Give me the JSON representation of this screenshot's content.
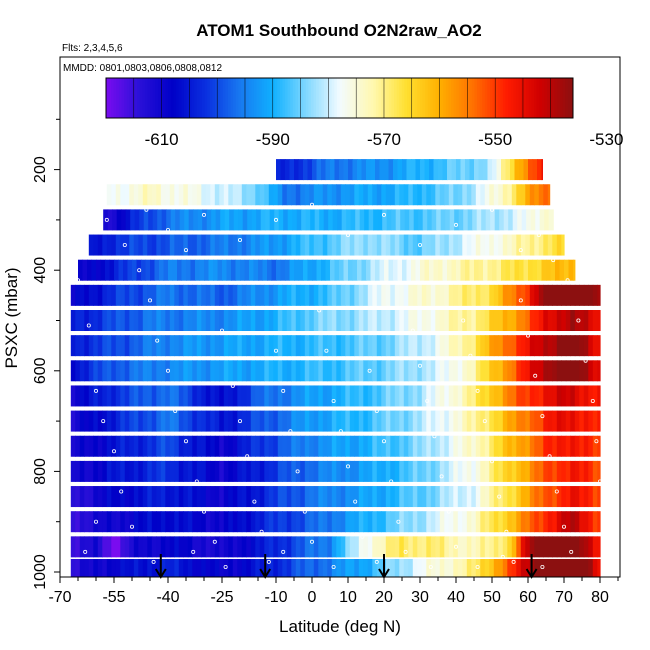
{
  "chart_data": {
    "type": "heatmap",
    "title": "ATOM1 Southbound O2N2raw_AO2",
    "flights_note": "Flts: 2,3,4,5,6",
    "dates_note": "MMDD: 0801,0803,0806,0808,0812",
    "xlabel": "Latitude (deg N)",
    "ylabel": "PSXC (mbar)",
    "xlim": [
      -70,
      80
    ],
    "ylim": [
      1000,
      0
    ],
    "x_ticks": [
      -70,
      -55,
      -40,
      -25,
      -10,
      0,
      10,
      20,
      30,
      40,
      50,
      60,
      70,
      80
    ],
    "y_ticks": [
      200,
      400,
      600,
      800,
      1000
    ],
    "colorbar": {
      "range": [
        -620,
        -536
      ],
      "tick_values": [
        -610,
        -590,
        -570,
        -550,
        -530
      ],
      "tick_labels": [
        "-610",
        "-590",
        "-570",
        "-550",
        "-530"
      ],
      "colors": [
        "#7a0cf0",
        "#2a10d8",
        "#0000c8",
        "#0a30e0",
        "#1878f0",
        "#10b0ff",
        "#80d8ff",
        "#f2fbff",
        "#fff8b0",
        "#ffe030",
        "#ffb000",
        "#ff7000",
        "#ff1c00",
        "#d00000",
        "#8c1010"
      ]
    },
    "bands": [
      {
        "p": 200,
        "lat_min": -10,
        "lat_max": 64,
        "knots": [
          [
            -10,
            -606
          ],
          [
            5,
            -596
          ],
          [
            20,
            -593
          ],
          [
            35,
            -588
          ],
          [
            50,
            -582
          ],
          [
            57,
            -560
          ],
          [
            64,
            -548
          ]
        ]
      },
      {
        "p": 250,
        "lat_min": -57,
        "lat_max": 66,
        "knots": [
          [
            -57,
            -578
          ],
          [
            -45,
            -574
          ],
          [
            -30,
            -578
          ],
          [
            -15,
            -584
          ],
          [
            -8,
            -596
          ],
          [
            10,
            -592
          ],
          [
            25,
            -590
          ],
          [
            40,
            -585
          ],
          [
            52,
            -575
          ],
          [
            60,
            -560
          ],
          [
            66,
            -552
          ]
        ]
      },
      {
        "p": 300,
        "lat_min": -58,
        "lat_max": 67,
        "knots": [
          [
            -58,
            -614
          ],
          [
            -50,
            -604
          ],
          [
            -40,
            -596
          ],
          [
            -25,
            -592
          ],
          [
            -10,
            -590
          ],
          [
            5,
            -590
          ],
          [
            20,
            -588
          ],
          [
            35,
            -586
          ],
          [
            50,
            -582
          ],
          [
            60,
            -578
          ],
          [
            67,
            -572
          ]
        ]
      },
      {
        "p": 350,
        "lat_min": -62,
        "lat_max": 70,
        "knots": [
          [
            -62,
            -608
          ],
          [
            -55,
            -602
          ],
          [
            -45,
            -600
          ],
          [
            -25,
            -596
          ],
          [
            -12,
            -593
          ],
          [
            0,
            -588
          ],
          [
            15,
            -582
          ],
          [
            30,
            -586
          ],
          [
            45,
            -578
          ],
          [
            55,
            -574
          ],
          [
            65,
            -568
          ],
          [
            70,
            -566
          ]
        ]
      },
      {
        "p": 400,
        "lat_min": -65,
        "lat_max": 73,
        "knots": [
          [
            -65,
            -612
          ],
          [
            -55,
            -604
          ],
          [
            -40,
            -596
          ],
          [
            -25,
            -594
          ],
          [
            -10,
            -596
          ],
          [
            5,
            -588
          ],
          [
            20,
            -580
          ],
          [
            35,
            -574
          ],
          [
            50,
            -570
          ],
          [
            60,
            -566
          ],
          [
            73,
            -560
          ]
        ]
      },
      {
        "p": 450,
        "lat_min": -67,
        "lat_max": 80,
        "knots": [
          [
            -67,
            -610
          ],
          [
            -55,
            -602
          ],
          [
            -40,
            -596
          ],
          [
            -25,
            -598
          ],
          [
            -10,
            -592
          ],
          [
            5,
            -588
          ],
          [
            20,
            -578
          ],
          [
            35,
            -574
          ],
          [
            50,
            -566
          ],
          [
            60,
            -548
          ],
          [
            66,
            -532
          ],
          [
            72,
            -526
          ],
          [
            80,
            -540
          ]
        ]
      },
      {
        "p": 500,
        "lat_min": -67,
        "lat_max": 80,
        "knots": [
          [
            -67,
            -605
          ],
          [
            -55,
            -600
          ],
          [
            -45,
            -596
          ],
          [
            -25,
            -594
          ],
          [
            -10,
            -590
          ],
          [
            0,
            -585
          ],
          [
            15,
            -582
          ],
          [
            30,
            -577
          ],
          [
            45,
            -570
          ],
          [
            55,
            -560
          ],
          [
            65,
            -545
          ],
          [
            72,
            -538
          ],
          [
            80,
            -546
          ]
        ]
      },
      {
        "p": 550,
        "lat_min": -67,
        "lat_max": 80,
        "knots": [
          [
            -67,
            -604
          ],
          [
            -55,
            -600
          ],
          [
            -40,
            -594
          ],
          [
            -25,
            -592
          ],
          [
            -10,
            -590
          ],
          [
            5,
            -588
          ],
          [
            20,
            -585
          ],
          [
            35,
            -578
          ],
          [
            45,
            -568
          ],
          [
            55,
            -552
          ],
          [
            65,
            -540
          ],
          [
            72,
            -532
          ],
          [
            80,
            -546
          ]
        ]
      },
      {
        "p": 600,
        "lat_min": -67,
        "lat_max": 80,
        "knots": [
          [
            -67,
            -606
          ],
          [
            -55,
            -598
          ],
          [
            -40,
            -594
          ],
          [
            -25,
            -592
          ],
          [
            -10,
            -590
          ],
          [
            5,
            -588
          ],
          [
            20,
            -585
          ],
          [
            35,
            -580
          ],
          [
            45,
            -572
          ],
          [
            55,
            -555
          ],
          [
            65,
            -538
          ],
          [
            72,
            -530
          ],
          [
            80,
            -545
          ]
        ]
      },
      {
        "p": 650,
        "lat_min": -67,
        "lat_max": 80,
        "knots": [
          [
            -67,
            -610
          ],
          [
            -55,
            -602
          ],
          [
            -40,
            -596
          ],
          [
            -25,
            -608
          ],
          [
            -15,
            -598
          ],
          [
            0,
            -592
          ],
          [
            15,
            -588
          ],
          [
            30,
            -582
          ],
          [
            45,
            -570
          ],
          [
            55,
            -555
          ],
          [
            65,
            -545
          ],
          [
            72,
            -542
          ],
          [
            80,
            -548
          ]
        ]
      },
      {
        "p": 700,
        "lat_min": -67,
        "lat_max": 80,
        "knots": [
          [
            -67,
            -612
          ],
          [
            -55,
            -604
          ],
          [
            -40,
            -596
          ],
          [
            -25,
            -606
          ],
          [
            -15,
            -600
          ],
          [
            0,
            -592
          ],
          [
            15,
            -588
          ],
          [
            30,
            -582
          ],
          [
            45,
            -572
          ],
          [
            55,
            -560
          ],
          [
            65,
            -548
          ],
          [
            72,
            -544
          ],
          [
            80,
            -550
          ]
        ]
      },
      {
        "p": 750,
        "lat_min": -67,
        "lat_max": 80,
        "knots": [
          [
            -67,
            -612
          ],
          [
            -55,
            -606
          ],
          [
            -40,
            -600
          ],
          [
            -25,
            -610
          ],
          [
            -15,
            -602
          ],
          [
            0,
            -594
          ],
          [
            15,
            -590
          ],
          [
            30,
            -584
          ],
          [
            45,
            -574
          ],
          [
            55,
            -562
          ],
          [
            65,
            -550
          ],
          [
            72,
            -545
          ],
          [
            80,
            -552
          ]
        ]
      },
      {
        "p": 800,
        "lat_min": -67,
        "lat_max": 80,
        "knots": [
          [
            -67,
            -612
          ],
          [
            -55,
            -606
          ],
          [
            -40,
            -602
          ],
          [
            -25,
            -610
          ],
          [
            -15,
            -604
          ],
          [
            0,
            -596
          ],
          [
            15,
            -592
          ],
          [
            30,
            -586
          ],
          [
            45,
            -576
          ],
          [
            55,
            -564
          ],
          [
            65,
            -552
          ],
          [
            72,
            -546
          ],
          [
            80,
            -552
          ]
        ]
      },
      {
        "p": 850,
        "lat_min": -67,
        "lat_max": 80,
        "knots": [
          [
            -67,
            -614
          ],
          [
            -55,
            -608
          ],
          [
            -40,
            -604
          ],
          [
            -25,
            -610
          ],
          [
            -15,
            -604
          ],
          [
            0,
            -596
          ],
          [
            15,
            -592
          ],
          [
            30,
            -586
          ],
          [
            45,
            -578
          ],
          [
            55,
            -566
          ],
          [
            65,
            -552
          ],
          [
            72,
            -546
          ],
          [
            80,
            -550
          ]
        ]
      },
      {
        "p": 900,
        "lat_min": -67,
        "lat_max": 80,
        "knots": [
          [
            -67,
            -614
          ],
          [
            -55,
            -610
          ],
          [
            -40,
            -606
          ],
          [
            -25,
            -610
          ],
          [
            -15,
            -604
          ],
          [
            0,
            -598
          ],
          [
            15,
            -590
          ],
          [
            30,
            -582
          ],
          [
            45,
            -574
          ],
          [
            55,
            -562
          ],
          [
            65,
            -548
          ],
          [
            72,
            -540
          ],
          [
            80,
            -550
          ]
        ]
      },
      {
        "p": 950,
        "lat_min": -67,
        "lat_max": 80,
        "knots": [
          [
            -67,
            -614
          ],
          [
            -60,
            -612
          ],
          [
            -55,
            -620
          ],
          [
            -50,
            -612
          ],
          [
            -40,
            -608
          ],
          [
            -25,
            -612
          ],
          [
            -15,
            -606
          ],
          [
            -5,
            -600
          ],
          [
            5,
            -594
          ],
          [
            15,
            -576
          ],
          [
            25,
            -568
          ],
          [
            35,
            -570
          ],
          [
            45,
            -574
          ],
          [
            55,
            -566
          ],
          [
            60,
            -540
          ],
          [
            65,
            -530
          ],
          [
            72,
            -528
          ],
          [
            80,
            -548
          ]
        ]
      },
      {
        "p": 995,
        "lat_min": -67,
        "lat_max": 80,
        "knots": [
          [
            -67,
            -614
          ],
          [
            -55,
            -608
          ],
          [
            -40,
            -604
          ],
          [
            -25,
            -610
          ],
          [
            -15,
            -606
          ],
          [
            -5,
            -600
          ],
          [
            5,
            -595
          ],
          [
            15,
            -590
          ],
          [
            30,
            -578
          ],
          [
            45,
            -570
          ],
          [
            55,
            -552
          ],
          [
            62,
            -535
          ],
          [
            68,
            -528
          ],
          [
            75,
            -530
          ],
          [
            80,
            -548
          ]
        ]
      }
    ],
    "arrows_lat": [
      -42,
      -13,
      20,
      61
    ],
    "sample_points": [
      [
        -65,
        420
      ],
      [
        -62,
        510
      ],
      [
        -60,
        640
      ],
      [
        -58,
        700
      ],
      [
        -55,
        760
      ],
      [
        -53,
        840
      ],
      [
        -50,
        910
      ],
      [
        -48,
        400
      ],
      [
        -45,
        460
      ],
      [
        -43,
        540
      ],
      [
        -40,
        600
      ],
      [
        -38,
        680
      ],
      [
        -35,
        740
      ],
      [
        -32,
        820
      ],
      [
        -30,
        880
      ],
      [
        -27,
        940
      ],
      [
        -25,
        520
      ],
      [
        -22,
        630
      ],
      [
        -20,
        700
      ],
      [
        -18,
        770
      ],
      [
        -16,
        860
      ],
      [
        -14,
        920
      ],
      [
        -12,
        980
      ],
      [
        -10,
        560
      ],
      [
        -8,
        640
      ],
      [
        -6,
        720
      ],
      [
        -4,
        800
      ],
      [
        -2,
        880
      ],
      [
        0,
        940
      ],
      [
        2,
        480
      ],
      [
        4,
        560
      ],
      [
        6,
        660
      ],
      [
        8,
        720
      ],
      [
        10,
        790
      ],
      [
        12,
        860
      ],
      [
        14,
        930
      ],
      [
        16,
        600
      ],
      [
        18,
        680
      ],
      [
        20,
        740
      ],
      [
        22,
        820
      ],
      [
        24,
        900
      ],
      [
        26,
        960
      ],
      [
        28,
        520
      ],
      [
        30,
        590
      ],
      [
        32,
        660
      ],
      [
        34,
        730
      ],
      [
        36,
        810
      ],
      [
        38,
        880
      ],
      [
        40,
        950
      ],
      [
        42,
        500
      ],
      [
        44,
        570
      ],
      [
        46,
        640
      ],
      [
        48,
        700
      ],
      [
        50,
        780
      ],
      [
        52,
        850
      ],
      [
        54,
        920
      ],
      [
        56,
        980
      ],
      [
        58,
        460
      ],
      [
        60,
        530
      ],
      [
        62,
        610
      ],
      [
        64,
        690
      ],
      [
        66,
        770
      ],
      [
        68,
        840
      ],
      [
        70,
        910
      ],
      [
        72,
        960
      ],
      [
        74,
        500
      ],
      [
        76,
        580
      ],
      [
        78,
        660
      ],
      [
        79,
        740
      ],
      [
        80,
        820
      ],
      [
        -57,
        300
      ],
      [
        -52,
        350
      ],
      [
        -46,
        280
      ],
      [
        -40,
        320
      ],
      [
        -35,
        360
      ],
      [
        -30,
        290
      ],
      [
        -20,
        340
      ],
      [
        -10,
        300
      ],
      [
        0,
        270
      ],
      [
        10,
        330
      ],
      [
        20,
        290
      ],
      [
        30,
        350
      ],
      [
        40,
        310
      ],
      [
        50,
        280
      ],
      [
        58,
        360
      ],
      [
        63,
        330
      ],
      [
        67,
        380
      ],
      [
        71,
        420
      ],
      [
        -63,
        960
      ],
      [
        -60,
        900
      ],
      [
        -44,
        980
      ],
      [
        -33,
        960
      ],
      [
        -24,
        990
      ],
      [
        -8,
        960
      ],
      [
        6,
        990
      ],
      [
        18,
        980
      ],
      [
        33,
        990
      ],
      [
        46,
        990
      ],
      [
        53,
        970
      ],
      [
        64,
        990
      ]
    ]
  }
}
